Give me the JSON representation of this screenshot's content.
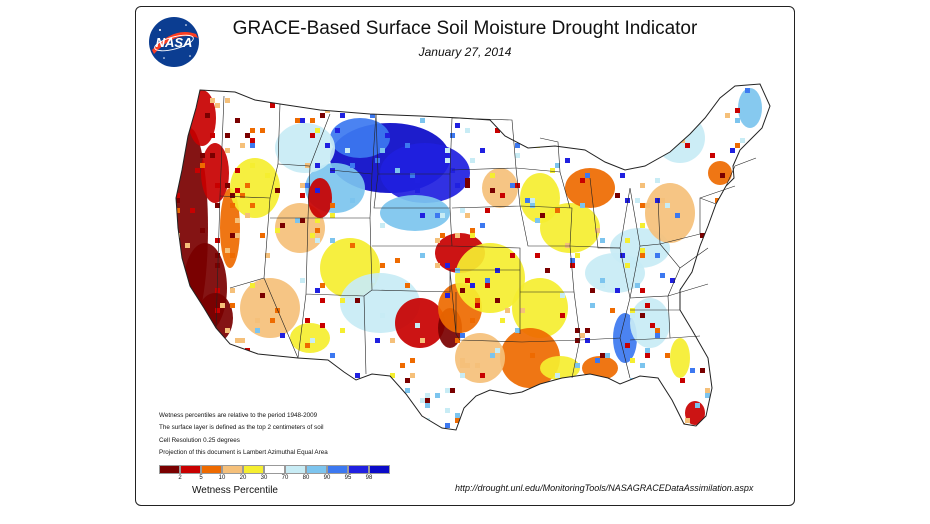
{
  "title": "GRACE-Based Surface Soil  Moisture Drought Indicator",
  "date": "January 27, 2014",
  "logo_text": "NASA",
  "notes": [
    "Wetness percentiles are relative to the period 1948-2009",
    "The surface layer is defined as the top 2 centimeters of soil",
    "Cell Resolution 0.25 degrees",
    "Projection of this document is  Lambert Azimuthal Equal Area"
  ],
  "legend": {
    "title": "Wetness Percentile",
    "ticks": [
      "2",
      "5",
      "10",
      "20",
      "30",
      "70",
      "80",
      "90",
      "95",
      "98"
    ],
    "colors": [
      "#7a0000",
      "#c80000",
      "#ee6a00",
      "#f5c07a",
      "#f5ee30",
      "#ffffff",
      "#c8ecf5",
      "#7cc4ee",
      "#3c78f0",
      "#2020e0",
      "#0a0ac8"
    ]
  },
  "source_url": "http://drought.unl.edu/MonitoringTools/NASAGRACEDataAssimilation.aspx",
  "map_colors": {
    "dry_extreme": "#7a0000",
    "dry_severe": "#c80000",
    "dry_moderate": "#ee6a00",
    "dry_mild": "#f5c07a",
    "dry_slight": "#f5ee30",
    "normal": "#ffffff",
    "wet_slight": "#c8ecf5",
    "wet_mild": "#7cc4ee",
    "wet_moderate": "#3c78f0",
    "wet_severe": "#2020e0",
    "wet_extreme": "#0a0ac8",
    "boundary": "#222222"
  }
}
